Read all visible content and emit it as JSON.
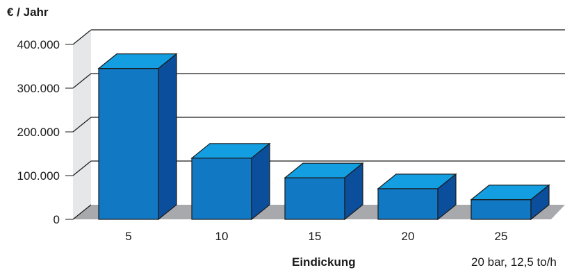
{
  "chart_data": {
    "type": "bar",
    "title": "",
    "ylabel": "€ / Jahr",
    "xlabel": "Eindickung",
    "note": "20 bar, 12,5 to/h",
    "categories": [
      "5",
      "10",
      "15",
      "20",
      "25"
    ],
    "values": [
      345000,
      140000,
      95000,
      70000,
      45000
    ],
    "ylim": [
      0,
      400000
    ],
    "yticks": [
      {
        "value": 0,
        "label": "0"
      },
      {
        "value": 100000,
        "label": "100.000"
      },
      {
        "value": 200000,
        "label": "200.000"
      },
      {
        "value": 300000,
        "label": "300.000"
      },
      {
        "value": 400000,
        "label": "400.000"
      }
    ],
    "grid": true,
    "style": "3d",
    "colors": {
      "bar_front": "#1178c3",
      "bar_top": "#129ee0",
      "bar_side": "#0b4e9b",
      "floor": "#a7a9ac",
      "wall": "#e6e7e8",
      "grid": "#1a1a1a"
    }
  }
}
